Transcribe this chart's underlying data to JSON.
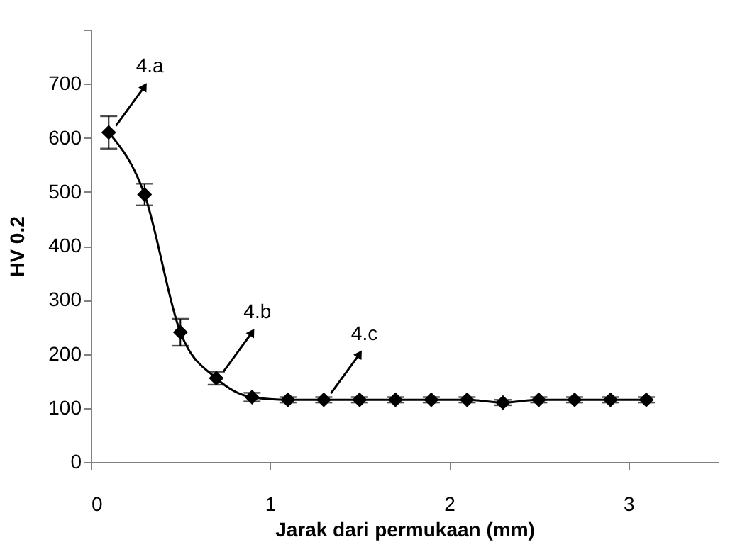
{
  "chart_data": {
    "type": "line",
    "xlabel": "Jarak dari permukaan (mm)",
    "ylabel": "HV 0.2",
    "x": [
      0.1,
      0.3,
      0.5,
      0.7,
      0.9,
      1.1,
      1.3,
      1.5,
      1.7,
      1.9,
      2.1,
      2.3,
      2.5,
      2.7,
      2.9,
      3.1
    ],
    "series": [
      {
        "color": "#000000",
        "values": [
          610,
          495,
          240,
          155,
          120,
          115,
          115,
          115,
          115,
          115,
          115,
          110,
          115,
          115,
          115,
          115
        ],
        "errors": [
          30,
          20,
          25,
          12,
          8,
          5,
          5,
          5,
          5,
          5,
          5,
          5,
          5,
          5,
          5,
          5
        ]
      }
    ],
    "xlim": [
      0,
      3.5
    ],
    "xticks": [
      0,
      1,
      2,
      3
    ],
    "ylim": [
      0,
      800
    ],
    "yticks": [
      0,
      100,
      200,
      300,
      400,
      500,
      600,
      700,
      {
        "value": 800,
        "label": null
      }
    ],
    "marker": "diamond",
    "line_style": "solid",
    "grid": false,
    "annotations": [
      {
        "text": "4.a",
        "x": 0.1,
        "y": 610
      },
      {
        "text": "4.b",
        "x": 0.7,
        "y": 155
      },
      {
        "text": "4.c",
        "x": 1.3,
        "y": 115
      }
    ]
  }
}
